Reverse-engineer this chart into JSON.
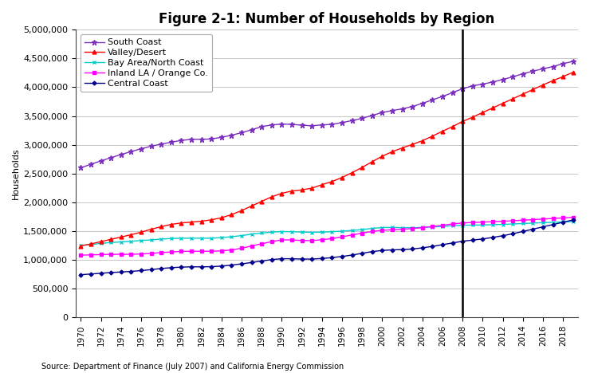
{
  "title": "Figure 2-1: Number of Households by Region",
  "ylabel": "Households",
  "source": "Source: Department of Finance (July 2007) and California Energy Commission",
  "years": [
    1970,
    1971,
    1972,
    1973,
    1974,
    1975,
    1976,
    1977,
    1978,
    1979,
    1980,
    1981,
    1982,
    1983,
    1984,
    1985,
    1986,
    1987,
    1988,
    1989,
    1990,
    1991,
    1992,
    1993,
    1994,
    1995,
    1996,
    1997,
    1998,
    1999,
    2000,
    2001,
    2002,
    2003,
    2004,
    2005,
    2006,
    2007,
    2008,
    2009,
    2010,
    2011,
    2012,
    2013,
    2014,
    2015,
    2016,
    2017,
    2018,
    2019
  ],
  "south_coast": [
    2600000,
    2660000,
    2720000,
    2775000,
    2830000,
    2880000,
    2930000,
    2975000,
    3010000,
    3045000,
    3075000,
    3095000,
    3095000,
    3100000,
    3130000,
    3165000,
    3210000,
    3260000,
    3315000,
    3345000,
    3360000,
    3355000,
    3340000,
    3330000,
    3345000,
    3355000,
    3385000,
    3420000,
    3460000,
    3510000,
    3560000,
    3595000,
    3625000,
    3665000,
    3720000,
    3780000,
    3840000,
    3905000,
    3975000,
    4025000,
    4055000,
    4090000,
    4135000,
    4180000,
    4235000,
    4280000,
    4320000,
    4360000,
    4410000,
    4450000
  ],
  "valley_desert": [
    1240000,
    1275000,
    1315000,
    1355000,
    1395000,
    1435000,
    1480000,
    1530000,
    1575000,
    1615000,
    1640000,
    1655000,
    1670000,
    1695000,
    1730000,
    1785000,
    1855000,
    1935000,
    2015000,
    2095000,
    2155000,
    2195000,
    2215000,
    2245000,
    2305000,
    2360000,
    2430000,
    2515000,
    2605000,
    2705000,
    2800000,
    2880000,
    2945000,
    3005000,
    3070000,
    3150000,
    3235000,
    3315000,
    3405000,
    3480000,
    3560000,
    3640000,
    3720000,
    3800000,
    3880000,
    3960000,
    4040000,
    4115000,
    4185000,
    4260000
  ],
  "bay_area": [
    1250000,
    1265000,
    1285000,
    1300000,
    1310000,
    1320000,
    1335000,
    1345000,
    1360000,
    1370000,
    1375000,
    1375000,
    1375000,
    1375000,
    1385000,
    1400000,
    1420000,
    1445000,
    1465000,
    1480000,
    1490000,
    1488000,
    1482000,
    1476000,
    1480000,
    1488000,
    1498000,
    1510000,
    1525000,
    1545000,
    1560000,
    1562000,
    1558000,
    1558000,
    1562000,
    1570000,
    1580000,
    1592000,
    1600000,
    1602000,
    1605000,
    1610000,
    1615000,
    1622000,
    1630000,
    1638000,
    1645000,
    1652000,
    1658000,
    1665000
  ],
  "inland_la": [
    1080000,
    1085000,
    1090000,
    1095000,
    1095000,
    1095000,
    1100000,
    1110000,
    1125000,
    1135000,
    1145000,
    1148000,
    1148000,
    1148000,
    1155000,
    1170000,
    1200000,
    1240000,
    1278000,
    1315000,
    1345000,
    1345000,
    1335000,
    1332000,
    1348000,
    1368000,
    1398000,
    1432000,
    1462000,
    1492000,
    1512000,
    1522000,
    1530000,
    1542000,
    1558000,
    1578000,
    1600000,
    1622000,
    1640000,
    1648000,
    1655000,
    1662000,
    1670000,
    1678000,
    1688000,
    1698000,
    1708000,
    1718000,
    1728000,
    1738000
  ],
  "central_coast": [
    740000,
    752000,
    765000,
    778000,
    787000,
    797000,
    812000,
    828000,
    848000,
    862000,
    872000,
    877000,
    877000,
    880000,
    890000,
    908000,
    928000,
    952000,
    978000,
    1003000,
    1018000,
    1018000,
    1012000,
    1012000,
    1022000,
    1037000,
    1057000,
    1082000,
    1112000,
    1142000,
    1162000,
    1172000,
    1177000,
    1187000,
    1207000,
    1232000,
    1262000,
    1292000,
    1322000,
    1342000,
    1362000,
    1388000,
    1418000,
    1452000,
    1492000,
    1532000,
    1572000,
    1612000,
    1652000,
    1692000
  ],
  "vline_x": 2008,
  "ylim": [
    0,
    5000000
  ],
  "yticks": [
    0,
    500000,
    1000000,
    1500000,
    2000000,
    2500000,
    3000000,
    3500000,
    4000000,
    4500000,
    5000000
  ],
  "xtick_years": [
    1970,
    1972,
    1974,
    1976,
    1978,
    1980,
    1982,
    1984,
    1986,
    1988,
    1990,
    1992,
    1994,
    1996,
    1998,
    2000,
    2002,
    2004,
    2006,
    2008,
    2010,
    2012,
    2014,
    2016,
    2018
  ],
  "colors": {
    "south_coast": "#7B2FBE",
    "valley_desert": "#FF0000",
    "bay_area": "#00CCCC",
    "inland_la": "#FF00FF",
    "central_coast": "#00008B"
  },
  "legend_labels": [
    "South Coast",
    "Valley/Desert",
    "Bay Area/North Coast",
    "Inland LA / Orange Co.",
    "Central Coast"
  ],
  "background_color": "#FFFFFF",
  "title_fontsize": 12,
  "axis_fontsize": 8,
  "tick_fontsize": 7.5,
  "source_fontsize": 7,
  "lw": 1.0,
  "marker_size": 3.5
}
